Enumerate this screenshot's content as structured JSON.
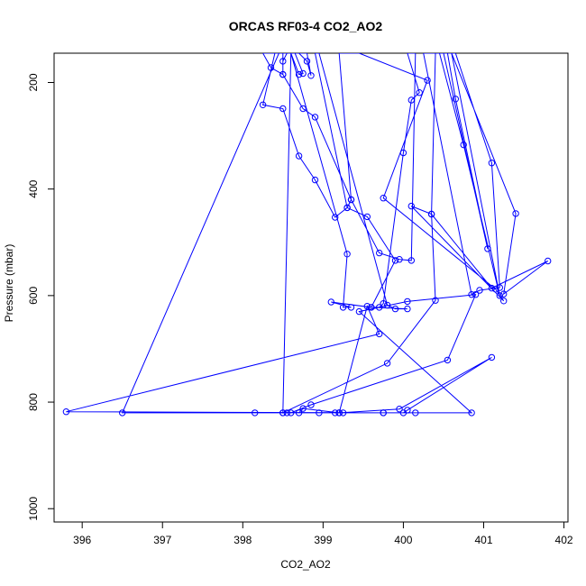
{
  "chart_data": {
    "type": "line",
    "title": "ORCAS RF03-4 CO2_AO2",
    "xlabel": "CO2_AO2",
    "ylabel": "Pressure (mbar)",
    "xlim": [
      395.65,
      402.05
    ],
    "ylim": [
      1025,
      145
    ],
    "y_reversed": true,
    "xticks": [
      396,
      397,
      398,
      399,
      400,
      401,
      402
    ],
    "yticks": [
      200,
      400,
      600,
      800,
      1000
    ],
    "series_color": "#0000ff",
    "marker": "open-circle",
    "grid": false,
    "legend": "none",
    "series": [
      {
        "points": [
          [
            398.25,
            145
          ],
          [
            398.35,
            172
          ],
          [
            398.5,
            185
          ],
          [
            398.5,
            160
          ],
          [
            398.55,
            145
          ],
          [
            398.6,
            145
          ],
          [
            398.7,
            185
          ],
          [
            398.75,
            183
          ],
          [
            398.65,
            145
          ],
          [
            398.7,
            145
          ],
          [
            398.8,
            160
          ],
          [
            398.85,
            187
          ],
          [
            398.8,
            145
          ],
          [
            398.5,
            145
          ],
          [
            398.5,
            185
          ],
          [
            398.75,
            249
          ],
          [
            398.9,
            265
          ],
          [
            399.35,
            420
          ],
          [
            399.3,
            435
          ],
          [
            399.15,
            453
          ],
          [
            398.9,
            383
          ],
          [
            398.7,
            338
          ],
          [
            398.5,
            249
          ],
          [
            398.25,
            242
          ],
          [
            398.4,
            145
          ],
          [
            398.6,
            145
          ],
          [
            399.3,
            522
          ],
          [
            399.25,
            622
          ],
          [
            399.35,
            622
          ],
          [
            399.1,
            612
          ],
          [
            399.6,
            622
          ],
          [
            399.9,
            534
          ],
          [
            399.55,
            452
          ],
          [
            399.3,
            435
          ],
          [
            398.9,
            145
          ],
          [
            398.95,
            145
          ],
          [
            399.8,
            618
          ],
          [
            399.9,
            625
          ],
          [
            400.05,
            625
          ],
          [
            399.6,
            622
          ],
          [
            399.7,
            622
          ],
          [
            399.75,
            615
          ],
          [
            400.0,
            332
          ],
          [
            400.1,
            233
          ],
          [
            400.2,
            219
          ],
          [
            400.05,
            145
          ],
          [
            400.15,
            145
          ],
          [
            400.1,
            534
          ],
          [
            399.95,
            532
          ],
          [
            399.7,
            520
          ],
          [
            399.35,
            420
          ],
          [
            399.2,
            145
          ],
          [
            399.3,
            145
          ],
          [
            399.45,
            145
          ],
          [
            400.3,
            196
          ],
          [
            399.75,
            417
          ],
          [
            401.15,
            588
          ],
          [
            401.25,
            610
          ],
          [
            400.1,
            432
          ],
          [
            400.35,
            447
          ],
          [
            400.4,
            145
          ],
          [
            400.45,
            145
          ],
          [
            400.75,
            317
          ],
          [
            401.2,
            600
          ],
          [
            400.6,
            145
          ],
          [
            400.65,
            145
          ],
          [
            401.1,
            351
          ],
          [
            401.2,
            585
          ],
          [
            400.95,
            590
          ],
          [
            400.85,
            598
          ],
          [
            400.25,
            145
          ],
          [
            400.55,
            145
          ],
          [
            400.65,
            231
          ],
          [
            401.05,
            512
          ],
          [
            400.5,
            145
          ],
          [
            400.6,
            145
          ],
          [
            401.4,
            446
          ],
          [
            401.25,
            597
          ],
          [
            401.8,
            535
          ],
          [
            401.1,
            586
          ],
          [
            400.35,
            447
          ],
          [
            400.4,
            609
          ],
          [
            399.8,
            727
          ],
          [
            398.5,
            820
          ],
          [
            398.6,
            145
          ],
          [
            398.25,
            145
          ],
          [
            398.45,
            145
          ],
          [
            396.5,
            820
          ],
          [
            398.15,
            820
          ],
          [
            398.55,
            820
          ],
          [
            399.75,
            820
          ],
          [
            400.15,
            820
          ],
          [
            399.2,
            820
          ],
          [
            399.2,
            820
          ],
          [
            399.95,
            813
          ],
          [
            401.1,
            716
          ],
          [
            400.05,
            815
          ],
          [
            400.0,
            820
          ],
          [
            398.5,
            820
          ],
          [
            398.95,
            820
          ],
          [
            398.7,
            820
          ],
          [
            398.75,
            812
          ],
          [
            399.2,
            820
          ],
          [
            399.55,
            620
          ],
          [
            399.7,
            672
          ],
          [
            395.8,
            818
          ],
          [
            399.75,
            820
          ],
          [
            398.6,
            820
          ],
          [
            398.85,
            805
          ],
          [
            400.55,
            721
          ],
          [
            400.9,
            598
          ],
          [
            400.05,
            611
          ],
          [
            399.45,
            630
          ],
          [
            400.85,
            820
          ],
          [
            399.25,
            820
          ],
          [
            399.15,
            820
          ]
        ]
      }
    ]
  }
}
